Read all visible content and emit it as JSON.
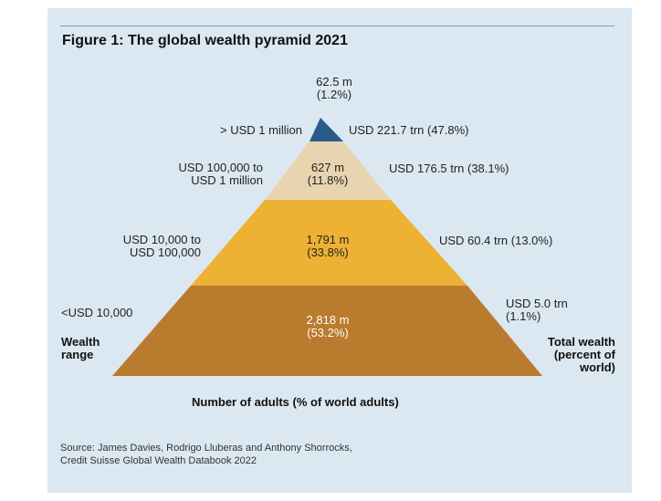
{
  "figure": {
    "title": "Figure 1: The global wealth pyramid 2021",
    "source_line1": "Source: James Davies, Rodrigo Lluberas and Anthony Shorrocks,",
    "source_line2": "Credit Suisse Global Wealth Databook 2022",
    "colors": {
      "panel_background": "#dbe8f1",
      "tier_top": "#2a5a8a",
      "tier_second": "#e8d4af",
      "tier_third": "#edb234",
      "tier_base": "#b97b2d"
    }
  },
  "chart_data": {
    "type": "pyramid",
    "title": "Figure 1: The global wealth pyramid 2021",
    "xlabel": "Number of adults (% of world adults)",
    "left_axis_label": "Wealth\nrange",
    "right_axis_label": "Total wealth\n(percent of\nworld)",
    "tiers": [
      {
        "wealth_range": "> USD 1 million",
        "adults_millions": 62.5,
        "adults_label": "62.5 m\n(1.2%)",
        "adults_pct": 1.2,
        "total_wealth_trn": 221.7,
        "wealth_pct": 47.8,
        "wealth_label": "USD 221.7 trn (47.8%)"
      },
      {
        "wealth_range": "USD 100,000 to\nUSD 1 million",
        "adults_millions": 627,
        "adults_label": "627 m\n(11.8%)",
        "adults_pct": 11.8,
        "total_wealth_trn": 176.5,
        "wealth_pct": 38.1,
        "wealth_label": "USD 176.5 trn (38.1%)"
      },
      {
        "wealth_range": "USD 10,000 to\nUSD 100,000",
        "adults_millions": 1791,
        "adults_label": "1,791 m\n(33.8%)",
        "adults_pct": 33.8,
        "total_wealth_trn": 60.4,
        "wealth_pct": 13.0,
        "wealth_label": "USD 60.4 trn (13.0%)"
      },
      {
        "wealth_range": "<USD 10,000",
        "adults_millions": 2818,
        "adults_label": "2,818 m\n(53.2%)",
        "adults_pct": 53.2,
        "total_wealth_trn": 5.0,
        "wealth_pct": 1.1,
        "wealth_label": "USD 5.0 trn\n(1.1%)"
      }
    ]
  }
}
